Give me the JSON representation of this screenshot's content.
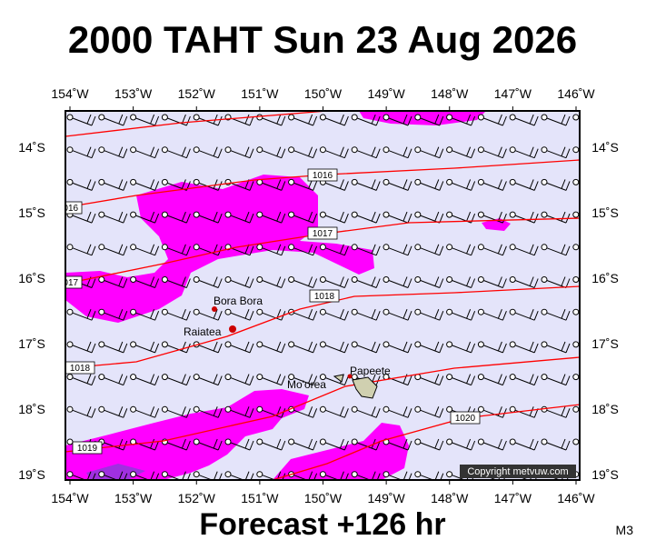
{
  "title": "2000 TAHT Sun 23 Aug 2026",
  "x_axis_labels": [
    "154˚W",
    "153˚W",
    "152˚W",
    "151˚W",
    "150˚W",
    "149˚W",
    "148˚W",
    "147˚W",
    "146˚W"
  ],
  "y_axis_labels": [
    "14˚S",
    "15˚S",
    "16˚S",
    "17˚S",
    "18˚S",
    "19˚S"
  ],
  "places": [
    "Bora Bora",
    "Raiatea",
    "Mo'orea",
    "Papeete"
  ],
  "isobar_labels": [
    "1016",
    "1017",
    "1018",
    "1019",
    "1020"
  ],
  "footer": "Forecast +126 hr",
  "copyright": "Copyright metvuw.com",
  "model": "M3"
}
